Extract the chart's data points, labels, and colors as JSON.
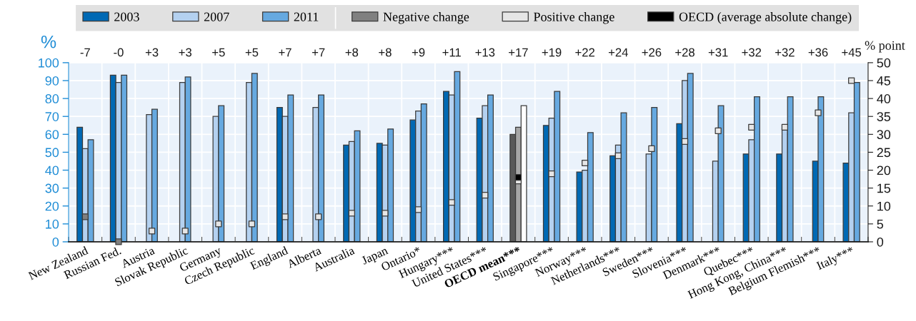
{
  "chart_data": {
    "type": "bar",
    "ylabel": "%",
    "y2label": "% point",
    "categories": [
      "New Zealand",
      "Russian Fed.",
      "Austria",
      "Slovak Republic",
      "Germany",
      "Czech Republic",
      "England",
      "Alberta",
      "Australia",
      "Japan",
      "Ontario*",
      "Hungary***",
      "United States***",
      "OECD mean***",
      "Singapore***",
      "Norway***",
      "Netherlands***",
      "Sweden***",
      "Slovenia***",
      "Denmark***",
      "Quebec***",
      "Hong Kong, China***",
      "Belgium Flemish***",
      "Italy***"
    ],
    "series": [
      {
        "name": "2003",
        "color": "#0069b4",
        "colors": [
          "#0069b4",
          "#0069b4",
          "#0069b4",
          "#0069b4",
          "#0069b4",
          "#0069b4",
          "#0069b4",
          "#0069b4",
          "#0069b4",
          "#0069b4",
          "#0069b4",
          "#0069b4",
          "#0069b4",
          "#595959",
          "#0069b4",
          "#0069b4",
          "#0069b4",
          "#0069b4",
          "#0069b4",
          "#0069b4",
          "#0069b4",
          "#0069b4",
          "#0069b4",
          "#0069b4"
        ],
        "values": [
          64,
          93,
          null,
          null,
          null,
          null,
          75,
          null,
          54,
          55,
          68,
          84,
          69,
          60,
          65,
          39,
          48,
          null,
          66,
          null,
          49,
          49,
          45,
          44
        ]
      },
      {
        "name": "2007",
        "color": "#b4d1f0",
        "colors": [
          "#b4d1f0",
          "#b4d1f0",
          "#b4d1f0",
          "#b4d1f0",
          "#b4d1f0",
          "#b4d1f0",
          "#b4d1f0",
          "#b4d1f0",
          "#b4d1f0",
          "#b4d1f0",
          "#b4d1f0",
          "#b4d1f0",
          "#b4d1f0",
          "#a6a6a6",
          "#b4d1f0",
          "#b4d1f0",
          "#b4d1f0",
          "#b4d1f0",
          "#b4d1f0",
          "#b4d1f0",
          "#b4d1f0",
          "#b4d1f0",
          "#b4d1f0",
          "#b4d1f0"
        ],
        "values": [
          52,
          89,
          71,
          89,
          70,
          89,
          70,
          75,
          56,
          54,
          73,
          82,
          76,
          64,
          69,
          40,
          54,
          49,
          90,
          45,
          57,
          63,
          null,
          72
        ]
      },
      {
        "name": "2011",
        "color": "#66a9e0",
        "colors": [
          "#66a9e0",
          "#66a9e0",
          "#66a9e0",
          "#66a9e0",
          "#66a9e0",
          "#66a9e0",
          "#66a9e0",
          "#66a9e0",
          "#66a9e0",
          "#66a9e0",
          "#66a9e0",
          "#66a9e0",
          "#66a9e0",
          "#ffffff",
          "#66a9e0",
          "#66a9e0",
          "#66a9e0",
          "#66a9e0",
          "#66a9e0",
          "#66a9e0",
          "#66a9e0",
          "#66a9e0",
          "#66a9e0",
          "#66a9e0"
        ],
        "values": [
          57,
          93,
          74,
          92,
          76,
          94,
          82,
          82,
          62,
          63,
          77,
          95,
          82,
          76,
          84,
          61,
          72,
          75,
          94,
          76,
          81,
          81,
          81,
          89
        ]
      },
      {
        "name": "Negative change",
        "type": "scatter",
        "axis": "y2",
        "marker": "square",
        "color": "#808080",
        "values": [
          7,
          0,
          null,
          null,
          null,
          null,
          null,
          null,
          null,
          null,
          null,
          null,
          null,
          null,
          null,
          null,
          null,
          null,
          null,
          null,
          null,
          null,
          null,
          null
        ]
      },
      {
        "name": "Positive change",
        "type": "scatter",
        "axis": "y2",
        "marker": "square",
        "color": "#e6e6e6",
        "values": [
          null,
          null,
          3,
          3,
          5,
          5,
          7,
          7,
          8,
          8,
          9,
          11,
          13,
          17,
          19,
          22,
          24,
          26,
          28,
          31,
          32,
          32,
          36,
          45
        ]
      },
      {
        "name": "OECD (average absolute change)",
        "type": "scatter",
        "axis": "y2",
        "marker": "square",
        "color": "#000000",
        "values": [
          null,
          null,
          null,
          null,
          null,
          null,
          null,
          null,
          null,
          null,
          null,
          null,
          null,
          18,
          null,
          null,
          null,
          null,
          null,
          null,
          null,
          null,
          null,
          null
        ]
      }
    ],
    "annotations": [
      "-7",
      "-0",
      "+3",
      "+3",
      "+5",
      "+5",
      "+7",
      "+7",
      "+8",
      "+8",
      "+9",
      "+11",
      "+13",
      "+17",
      "+19",
      "+22",
      "+24",
      "+26",
      "+28",
      "+31",
      "+32",
      "+32",
      "+36",
      "+45"
    ],
    "ylim": [
      0,
      100
    ],
    "yticks": [
      0,
      10,
      20,
      30,
      40,
      50,
      60,
      70,
      80,
      90,
      100
    ],
    "y2lim": [
      0,
      50
    ],
    "y2ticks": [
      0,
      5,
      10,
      15,
      20,
      25,
      30,
      35,
      40,
      45,
      50
    ],
    "grid": true,
    "legend": "top"
  }
}
